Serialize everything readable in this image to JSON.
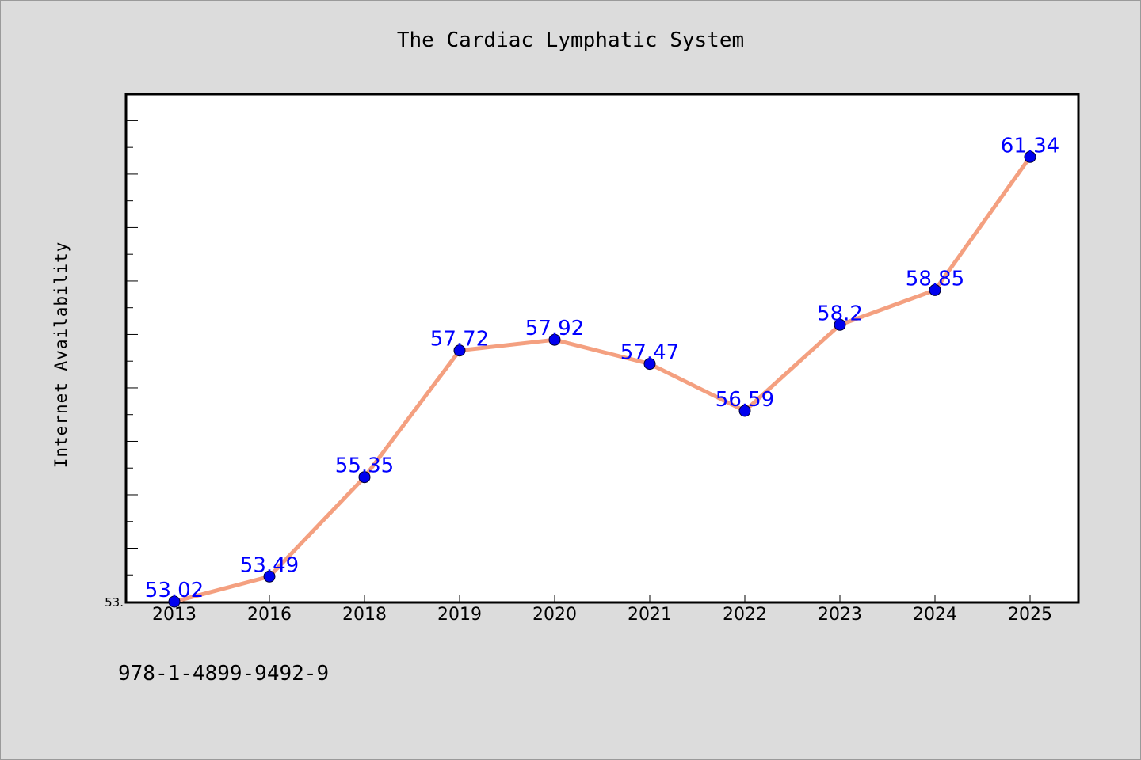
{
  "chart_data": {
    "type": "line",
    "title": "The Cardiac Lymphatic System",
    "xlabel": "",
    "ylabel": "Internet Availability",
    "categories": [
      "2013",
      "2016",
      "2018",
      "2019",
      "2020",
      "2021",
      "2022",
      "2023",
      "2024",
      "2025"
    ],
    "series": [
      {
        "values": [
          53.02,
          53.49,
          55.35,
          57.72,
          57.92,
          57.47,
          56.59,
          58.2,
          58.85,
          61.34
        ],
        "labels": [
          "53.02",
          "53.49",
          "55.35",
          "57.72",
          "57.92",
          "57.47",
          "56.59",
          "58.2",
          "58.85",
          "61.34"
        ],
        "line_color": "#f4a080",
        "marker_color": "#0000ee",
        "label_color": "#0000ff"
      }
    ],
    "y_tick_labels": [
      "53."
    ],
    "ylim": [
      53.02,
      62.5
    ],
    "y_minor_tick_step": 0.5,
    "grid": false,
    "legend": "none"
  },
  "footer": {
    "isbn": "978-1-4899-9492-9"
  }
}
